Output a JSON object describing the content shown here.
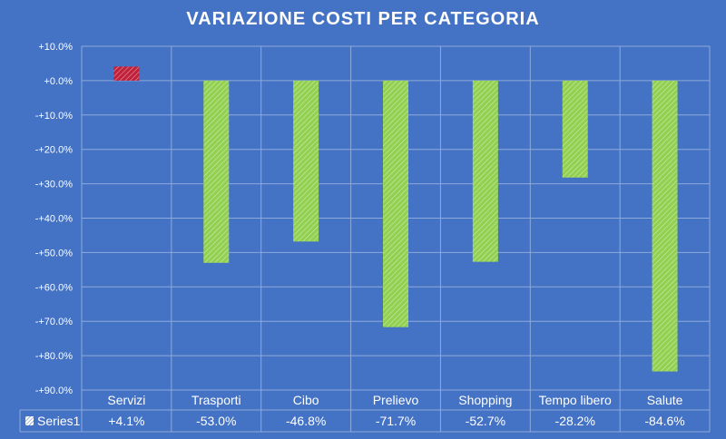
{
  "chart_data": {
    "type": "bar",
    "title": "VARIAZIONE  COSTI PER CATEGORIA",
    "categories": [
      "Servizi",
      "Trasporti",
      "Cibo",
      "Prelievo",
      "Shopping",
      "Tempo libero",
      "Salute"
    ],
    "series": [
      {
        "name": "Series1",
        "values": [
          4.1,
          -53.0,
          -46.8,
          -71.7,
          -52.7,
          -28.2,
          -84.6
        ],
        "labels": [
          "+4.1%",
          "-53.0%",
          "-46.8%",
          "-71.7%",
          "-52.7%",
          "-28.2%",
          "-84.6%"
        ]
      }
    ],
    "ylim": [
      -90,
      10
    ],
    "yticks": [
      10,
      0,
      -10,
      -20,
      -30,
      -40,
      -50,
      -60,
      -70,
      -80,
      -90
    ],
    "ytick_labels": [
      "+10.0%",
      "+0.0%",
      "-+10.0%",
      "-+20.0%",
      "-+30.0%",
      "-+40.0%",
      "-+50.0%",
      "-+60.0%",
      "-+70.0%",
      "-+80.0%",
      "-+90.0%"
    ],
    "grid": true,
    "legend": "data-table",
    "colors": {
      "background": "#4472c4",
      "positive": "#c0203a",
      "negative": "#92d050",
      "grid": "#8eaadb"
    }
  }
}
